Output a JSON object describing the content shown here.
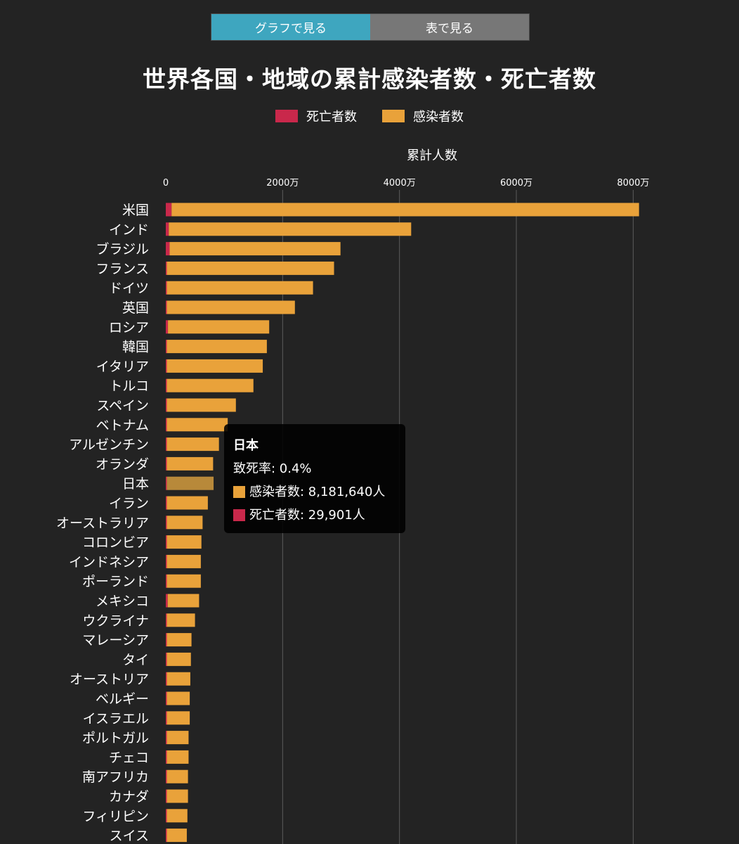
{
  "toggle": {
    "graph_label": "グラフで見る",
    "table_label": "表で見る"
  },
  "title": "世界各国・地域の累計感染者数・死亡者数",
  "legend": {
    "deaths_label": "死亡者数",
    "cases_label": "感染者数"
  },
  "colors": {
    "deaths": "#c9284b",
    "cases": "#e9a23a",
    "highlight": "#b8893a",
    "active_tab": "#3ea6bf",
    "inactive_tab": "#777777",
    "grid": "#5c5c5c",
    "background": "#232323"
  },
  "chart_data": {
    "type": "bar",
    "orientation": "horizontal",
    "stacked": true,
    "xlabel": "累計人数",
    "xlim": [
      0,
      82000000
    ],
    "ticks": [
      {
        "value": 0,
        "label": "0"
      },
      {
        "value": 20000000,
        "label": "2000万"
      },
      {
        "value": 40000000,
        "label": "4000万"
      },
      {
        "value": 60000000,
        "label": "6000万"
      },
      {
        "value": 80000000,
        "label": "8000万"
      }
    ],
    "grid": true,
    "legend_position": "top-center",
    "categories": [
      "米国",
      "インド",
      "ブラジル",
      "フランス",
      "ドイツ",
      "英国",
      "ロシア",
      "韓国",
      "イタリア",
      "トルコ",
      "スペイン",
      "ベトナム",
      "アルゼンチン",
      "オランダ",
      "日本",
      "イラン",
      "オーストラリア",
      "コロンビア",
      "インドネシア",
      "ポーランド",
      "メキシコ",
      "ウクライナ",
      "マレーシア",
      "タイ",
      "オーストリア",
      "ベルギー",
      "イスラエル",
      "ポルトガル",
      "チェコ",
      "南アフリカ",
      "カナダ",
      "フィリピン",
      "スイス"
    ],
    "series": [
      {
        "name": "死亡者数",
        "values": [
          990000,
          520000,
          660000,
          145000,
          135000,
          175000,
          370000,
          24000,
          165000,
          98000,
          106000,
          43000,
          128000,
          22000,
          29901,
          141000,
          9000,
          140000,
          156000,
          116000,
          326000,
          109000,
          36000,
          30000,
          19000,
          32000,
          11000,
          22000,
          40000,
          101000,
          40000,
          60000,
          13000
        ]
      },
      {
        "name": "感染者数",
        "values": [
          81000000,
          42000000,
          29900000,
          28800000,
          25200000,
          22100000,
          17700000,
          17300000,
          16600000,
          15000000,
          12000000,
          10600000,
          9100000,
          8100000,
          8181640,
          7200000,
          6300000,
          6100000,
          6000000,
          6000000,
          5700000,
          5000000,
          4400000,
          4300000,
          4200000,
          4100000,
          4100000,
          3900000,
          3900000,
          3800000,
          3800000,
          3700000,
          3600000
        ]
      }
    ],
    "highlighted": "日本"
  },
  "tooltip": {
    "country": "日本",
    "cfr_line": "致死率: 0.4%",
    "cases_line": "感染者数: 8,181,640人",
    "deaths_line": "死亡者数: 29,901人"
  }
}
